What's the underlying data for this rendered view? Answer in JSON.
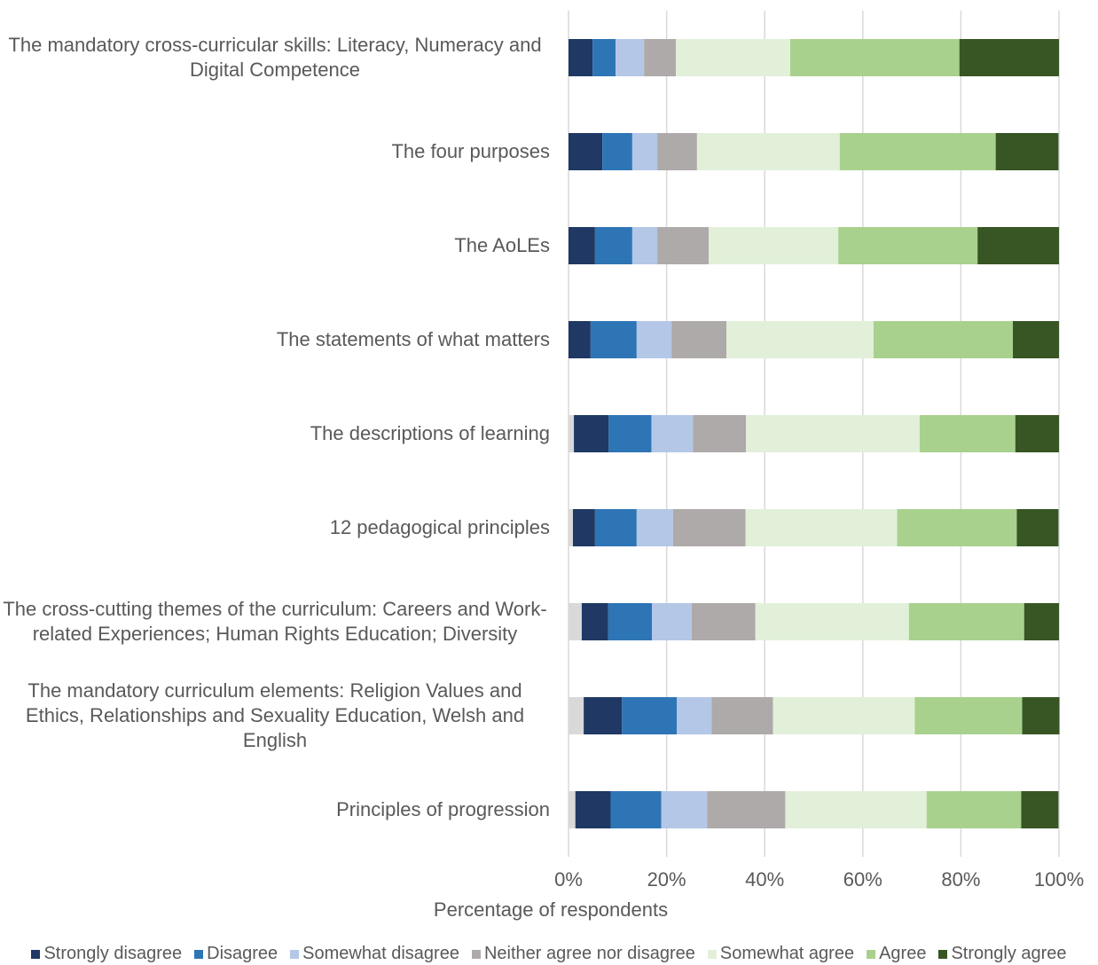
{
  "chart_data": {
    "type": "stacked-barh",
    "x_label": "Percentage of respondents",
    "categories": [
      "The mandatory cross-curricular skills: Literacy, Numeracy and Digital Competence",
      "The four purposes",
      "The AoLEs",
      "The statements of what matters",
      "The descriptions of learning",
      "12 pedagogical principles",
      "The cross-cutting themes of the curriculum: Careers and Work-related Experiences; Human Rights Education; Diversity",
      "The mandatory curriculum elements: Religion Values and Ethics, Relationships and Sexuality Education, Welsh and English",
      "Principles of progression"
    ],
    "series": [
      {
        "name": null,
        "color": "#d9d9d9",
        "values": [
          0,
          0,
          0,
          0,
          1.1,
          0.9,
          2.7,
          3.1,
          1.4
        ]
      },
      {
        "name": "Strongly disagree",
        "color": "#1f3864",
        "values": [
          4.9,
          6.9,
          5.4,
          4.5,
          7.1,
          4.5,
          5.4,
          7.8,
          7.2
        ]
      },
      {
        "name": "Disagree",
        "color": "#2e75b6",
        "values": [
          4.7,
          6.1,
          7.6,
          9.4,
          8.7,
          8.5,
          8.9,
          11.2,
          10.3
        ]
      },
      {
        "name": "Somewhat disagree",
        "color": "#b4c7e7",
        "values": [
          5.8,
          5.1,
          5.1,
          7.1,
          8.5,
          7.4,
          8.1,
          7.1,
          9.4
        ]
      },
      {
        "name": "Neither agree nor disagree",
        "color": "#aeaaaa",
        "values": [
          6.5,
          8.1,
          10.5,
          11.2,
          10.8,
          14.8,
          13.0,
          12.5,
          15.9
        ]
      },
      {
        "name": "Somewhat agree",
        "color": "#e2f0d9",
        "values": [
          23.3,
          29.1,
          26.4,
          30.0,
          35.4,
          30.9,
          31.3,
          28.9,
          28.8
        ]
      },
      {
        "name": "Agree",
        "color": "#a9d18e",
        "values": [
          34.5,
          31.8,
          28.4,
          28.4,
          19.5,
          24.4,
          23.5,
          21.9,
          19.3
        ]
      },
      {
        "name": "Strongly agree",
        "color": "#375623",
        "values": [
          20.3,
          12.8,
          16.6,
          9.4,
          8.9,
          8.5,
          7.1,
          7.6,
          7.6
        ]
      }
    ],
    "xlim": [
      0,
      100
    ],
    "xticks": [
      {
        "value": 0,
        "label": "0%"
      },
      {
        "value": 20,
        "label": "20%"
      },
      {
        "value": 40,
        "label": "40%"
      },
      {
        "value": 60,
        "label": "60%"
      },
      {
        "value": 80,
        "label": "80%"
      },
      {
        "value": 100,
        "label": "100%"
      }
    ],
    "grid": true
  }
}
